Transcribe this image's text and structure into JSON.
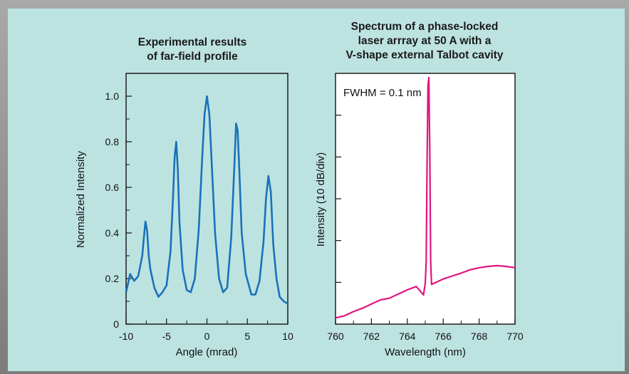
{
  "colors": {
    "panel_background": "#bde3e1",
    "left_series": "#1a72b8",
    "right_series": "#e0157f",
    "axis": "#111111"
  },
  "chart_data": [
    {
      "type": "line",
      "title_lines": [
        "Experimental results",
        "of far-field profile"
      ],
      "xlabel": "Angle (mrad)",
      "ylabel": "Normalized Intensity",
      "xlim": [
        -10,
        10
      ],
      "ylim": [
        0,
        1.1
      ],
      "xticks": [
        -10,
        -5,
        0,
        5,
        10
      ],
      "xtick_labels": [
        "-10",
        "-5",
        "0",
        "5",
        "10"
      ],
      "yticks": [
        0,
        0.2,
        0.4,
        0.6,
        0.8,
        1.0
      ],
      "ytick_labels": [
        "0",
        "0.2",
        "0.4",
        "0.6",
        "0.8",
        "1.0"
      ],
      "series": [
        {
          "color": "#1a72b8",
          "x": [
            -10,
            -9.5,
            -9.0,
            -8.5,
            -8.0,
            -7.8,
            -7.6,
            -7.4,
            -7.2,
            -7.0,
            -6.5,
            -6.0,
            -5.5,
            -5.0,
            -4.5,
            -4.2,
            -4.0,
            -3.8,
            -3.6,
            -3.4,
            -3.0,
            -2.5,
            -2.0,
            -1.5,
            -1.0,
            -0.6,
            -0.3,
            0.0,
            0.3,
            0.6,
            1.0,
            1.5,
            2.0,
            2.5,
            3.0,
            3.4,
            3.6,
            3.8,
            4.0,
            4.3,
            4.8,
            5.5,
            6.0,
            6.5,
            7.0,
            7.3,
            7.6,
            7.9,
            8.2,
            8.6,
            9.0,
            9.5,
            10.0
          ],
          "y": [
            0.14,
            0.22,
            0.19,
            0.21,
            0.3,
            0.38,
            0.45,
            0.41,
            0.3,
            0.24,
            0.16,
            0.12,
            0.14,
            0.17,
            0.32,
            0.55,
            0.73,
            0.8,
            0.68,
            0.45,
            0.24,
            0.15,
            0.14,
            0.2,
            0.42,
            0.72,
            0.92,
            1.0,
            0.92,
            0.7,
            0.4,
            0.2,
            0.14,
            0.16,
            0.38,
            0.7,
            0.88,
            0.85,
            0.68,
            0.4,
            0.22,
            0.13,
            0.13,
            0.19,
            0.36,
            0.55,
            0.65,
            0.58,
            0.35,
            0.2,
            0.12,
            0.1,
            0.09
          ]
        }
      ]
    },
    {
      "type": "line",
      "title_lines": [
        "Spectrum of a phase-locked",
        "laser arrray at 50 A with a",
        "V-shape external Talbot cavity"
      ],
      "xlabel": "Wavelength (nm)",
      "ylabel": "Intensity (10 dB/div)",
      "xlim": [
        760,
        770
      ],
      "ylim": [
        0,
        6
      ],
      "xticks": [
        760,
        762,
        764,
        766,
        768,
        770
      ],
      "xtick_labels": [
        "760",
        "762",
        "764",
        "766",
        "768",
        "770"
      ],
      "yticks": [
        1,
        2,
        3,
        4,
        5
      ],
      "annotation": "FWHM = 0.1 nm",
      "series": [
        {
          "color": "#e0157f",
          "x": [
            760.0,
            760.5,
            761.0,
            761.5,
            762.0,
            762.5,
            763.0,
            763.5,
            764.0,
            764.5,
            764.9,
            765.0,
            765.05,
            765.1,
            765.15,
            765.2,
            765.25,
            765.3,
            765.35,
            765.5,
            766.0,
            766.5,
            767.0,
            767.5,
            768.0,
            768.5,
            769.0,
            769.5,
            770.0
          ],
          "y": [
            0.15,
            0.2,
            0.3,
            0.38,
            0.48,
            0.58,
            0.62,
            0.72,
            0.82,
            0.9,
            0.7,
            0.98,
            1.5,
            3.8,
            5.7,
            5.9,
            4.2,
            1.5,
            0.95,
            0.98,
            1.08,
            1.15,
            1.22,
            1.3,
            1.35,
            1.38,
            1.4,
            1.38,
            1.35
          ]
        }
      ]
    }
  ]
}
